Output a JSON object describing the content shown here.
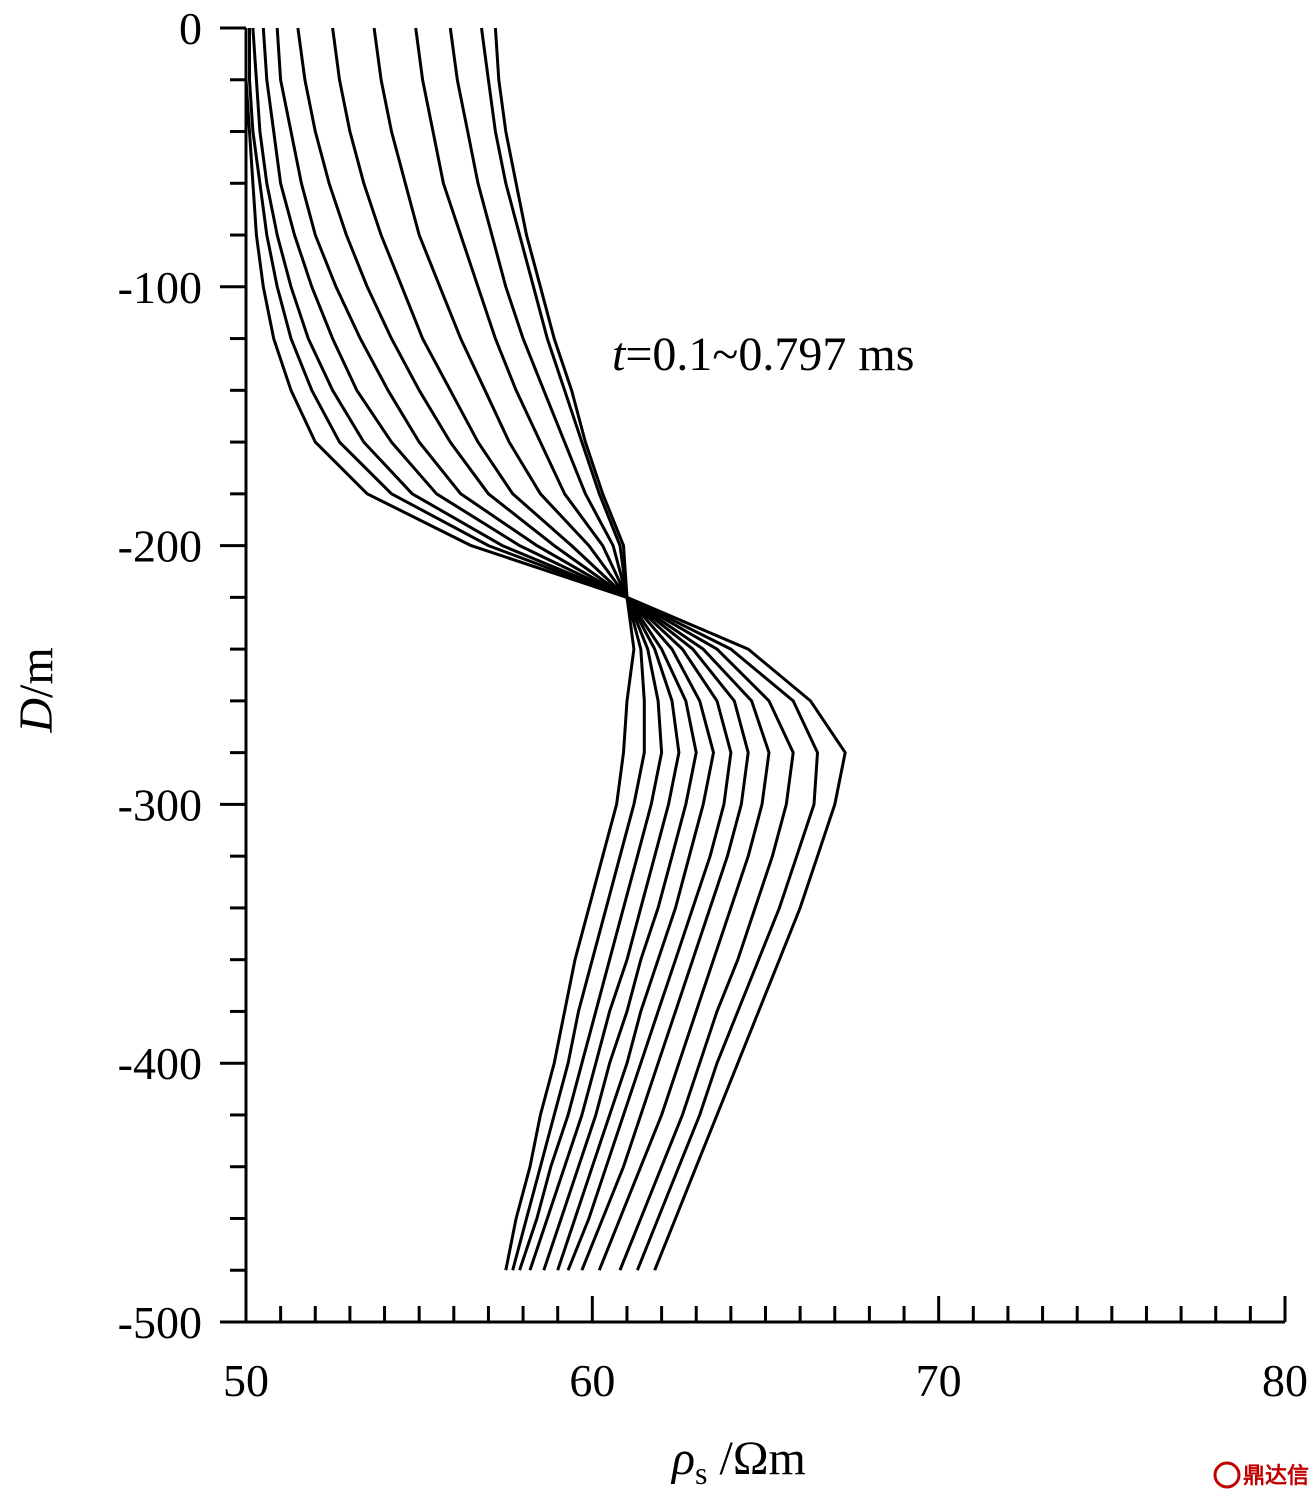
{
  "chart_data": {
    "type": "line",
    "title": "",
    "xlabel": {
      "symbol": "ρ",
      "subscript": "s",
      "unit": "/Ωm"
    },
    "ylabel": {
      "symbol": "D",
      "unit": "/m"
    },
    "xlim": [
      50,
      80
    ],
    "ylim": [
      -500,
      0
    ],
    "x_ticks": [
      50,
      60,
      70,
      80
    ],
    "x_tick_labels": [
      "50",
      "60",
      "70",
      "80"
    ],
    "y_ticks": [
      0,
      -100,
      -200,
      -300,
      -400,
      -500
    ],
    "y_tick_labels": [
      "0",
      "-100",
      "-200",
      "-300",
      "-400",
      "-500"
    ],
    "grid": false,
    "legend": "none",
    "annotation": {
      "italic": "t",
      "text": "=0.1~0.797 ms"
    },
    "depths": [
      0,
      -20,
      -40,
      -60,
      -80,
      -100,
      -120,
      -140,
      -160,
      -180,
      -200,
      -220,
      -240,
      -260,
      -280,
      -300,
      -320,
      -340,
      -360,
      -380,
      -400,
      -420,
      -440,
      -460,
      -480
    ],
    "series": [
      {
        "values": [
          50.0,
          50.0,
          50.1,
          50.2,
          50.3,
          50.5,
          50.8,
          51.3,
          52.0,
          53.5,
          56.5,
          61.0,
          61.2,
          61.0,
          60.9,
          60.7,
          60.3,
          59.9,
          59.5,
          59.2,
          58.9,
          58.5,
          58.2,
          57.8,
          57.5
        ]
      },
      {
        "values": [
          50.1,
          50.1,
          50.2,
          50.4,
          50.6,
          50.9,
          51.3,
          51.9,
          52.7,
          54.2,
          57.0,
          61.0,
          61.4,
          61.5,
          61.5,
          61.2,
          60.8,
          60.4,
          60.0,
          59.6,
          59.3,
          58.9,
          58.5,
          58.1,
          57.7
        ]
      },
      {
        "values": [
          50.2,
          50.3,
          50.4,
          50.6,
          50.9,
          51.3,
          51.8,
          52.5,
          53.4,
          54.8,
          57.4,
          61.0,
          61.6,
          61.9,
          62.0,
          61.7,
          61.3,
          60.9,
          60.5,
          60.1,
          59.7,
          59.3,
          58.8,
          58.4,
          57.9
        ]
      },
      {
        "values": [
          50.5,
          50.6,
          50.8,
          51.0,
          51.4,
          51.9,
          52.5,
          53.2,
          54.2,
          55.5,
          57.9,
          61.0,
          61.8,
          62.3,
          62.5,
          62.2,
          61.8,
          61.4,
          61.0,
          60.5,
          60.1,
          59.7,
          59.2,
          58.7,
          58.2
        ]
      },
      {
        "values": [
          50.9,
          51.0,
          51.3,
          51.6,
          52.0,
          52.6,
          53.3,
          54.1,
          55.0,
          56.2,
          58.4,
          61.0,
          62.0,
          62.7,
          63.0,
          62.7,
          62.3,
          61.9,
          61.4,
          61.0,
          60.5,
          60.1,
          59.6,
          59.1,
          58.6
        ]
      },
      {
        "values": [
          51.5,
          51.7,
          52.0,
          52.4,
          52.9,
          53.5,
          54.2,
          55.0,
          55.9,
          57.0,
          58.9,
          61.0,
          62.3,
          63.1,
          63.5,
          63.2,
          62.8,
          62.4,
          61.9,
          61.4,
          61.0,
          60.5,
          60.0,
          59.5,
          59.0
        ]
      },
      {
        "values": [
          52.5,
          52.7,
          53.0,
          53.4,
          53.9,
          54.5,
          55.1,
          55.9,
          56.7,
          57.7,
          59.4,
          61.0,
          62.6,
          63.6,
          64.0,
          63.8,
          63.4,
          62.9,
          62.4,
          61.9,
          61.4,
          60.9,
          60.4,
          59.9,
          59.3
        ]
      },
      {
        "values": [
          53.7,
          53.9,
          54.2,
          54.6,
          55.0,
          55.6,
          56.2,
          56.9,
          57.6,
          58.5,
          59.9,
          61.0,
          62.9,
          64.1,
          64.5,
          64.3,
          63.9,
          63.4,
          62.9,
          62.4,
          61.9,
          61.4,
          60.9,
          60.3,
          59.7
        ]
      },
      {
        "values": [
          54.9,
          55.1,
          55.4,
          55.7,
          56.2,
          56.7,
          57.2,
          57.8,
          58.5,
          59.2,
          60.3,
          61.0,
          63.2,
          64.6,
          65.1,
          64.9,
          64.5,
          64.0,
          63.5,
          63.0,
          62.5,
          62.0,
          61.4,
          60.8,
          60.2
        ]
      },
      {
        "values": [
          55.9,
          56.1,
          56.4,
          56.7,
          57.1,
          57.5,
          58.0,
          58.6,
          59.2,
          59.8,
          60.6,
          61.0,
          63.6,
          65.1,
          65.8,
          65.6,
          65.2,
          64.7,
          64.2,
          63.6,
          63.1,
          62.6,
          62.0,
          61.4,
          60.8
        ]
      },
      {
        "values": [
          56.8,
          57.0,
          57.2,
          57.5,
          57.9,
          58.3,
          58.7,
          59.2,
          59.7,
          60.2,
          60.8,
          61.0,
          64.0,
          65.8,
          66.5,
          66.4,
          65.9,
          65.4,
          64.8,
          64.2,
          63.6,
          63.1,
          62.5,
          61.9,
          61.3
        ]
      },
      {
        "values": [
          57.2,
          57.3,
          57.5,
          57.8,
          58.1,
          58.5,
          58.9,
          59.4,
          59.8,
          60.3,
          60.9,
          61.0,
          64.5,
          66.3,
          67.3,
          67.0,
          66.5,
          66.0,
          65.4,
          64.8,
          64.2,
          63.6,
          63.0,
          62.4,
          61.8
        ]
      }
    ]
  },
  "watermark": {
    "text": "鼎达信"
  }
}
